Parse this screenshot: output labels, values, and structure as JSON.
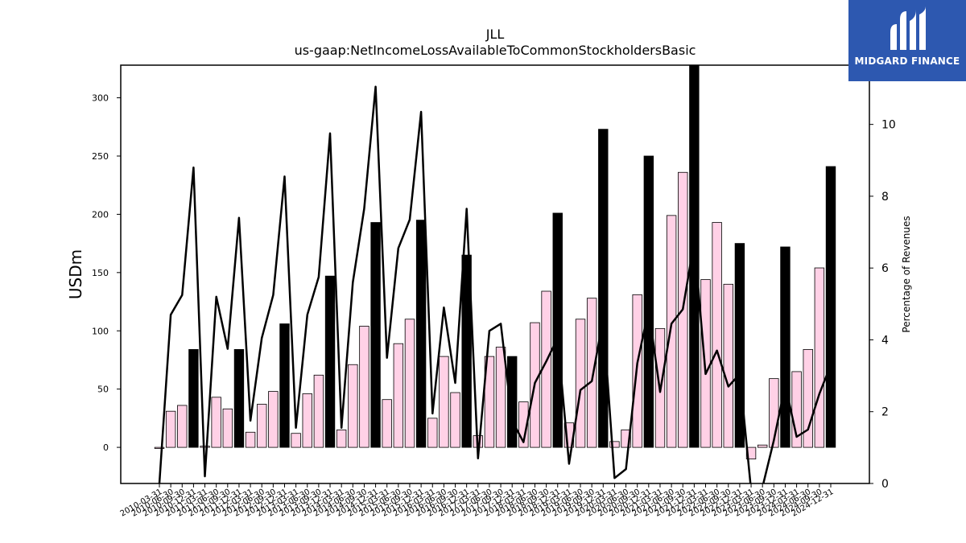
{
  "brand": {
    "name": "MIDGARD FINANCE",
    "logo_icon": "midgard-m-logo-icon",
    "background_color": "#2d58b0"
  },
  "chart_data": {
    "type": "bar",
    "title": "JLL",
    "subtitle": "us-gaap:NetIncomeLossAvailableToCommonStockholdersBasic",
    "ylabel": "USDm",
    "y2label": "Percentage of Revenues",
    "ylim": [
      -31,
      328
    ],
    "y2lim": [
      0,
      11.65
    ],
    "yticks": [
      0,
      50,
      100,
      150,
      200,
      250,
      300
    ],
    "y2ticks": [
      0,
      2,
      4,
      6,
      8,
      10
    ],
    "legend": "none",
    "grid": false,
    "colors": {
      "quarter_bar": "#ffd1e6",
      "annual_bar": "#000000",
      "line": "#000000"
    },
    "categories": [
      "2010-03-31",
      "2010-06-30",
      "2010-09-30",
      "2010-12-31",
      "2011-03-31",
      "2011-06-30",
      "2011-09-30",
      "2011-12-31",
      "2012-03-31",
      "2012-06-30",
      "2012-09-30",
      "2012-12-31",
      "2013-03-31",
      "2013-06-30",
      "2013-09-30",
      "2013-12-31",
      "2014-03-31",
      "2014-06-30",
      "2014-09-30",
      "2014-12-31",
      "2015-03-31",
      "2015-06-30",
      "2015-09-30",
      "2015-12-31",
      "2016-03-31",
      "2016-06-30",
      "2016-09-30",
      "2016-12-31",
      "2017-03-31",
      "2017-06-30",
      "2017-09-30",
      "2017-12-31",
      "2018-03-31",
      "2018-06-30",
      "2018-09-30",
      "2018-12-31",
      "2019-03-31",
      "2019-06-30",
      "2019-09-30",
      "2019-12-31",
      "2020-03-31",
      "2020-06-30",
      "2020-09-30",
      "2020-12-31",
      "2021-03-31",
      "2021-06-30",
      "2021-09-30",
      "2021-12-31",
      "2022-03-31",
      "2022-06-30",
      "2022-09-30",
      "2022-12-31",
      "2023-03-31",
      "2023-06-30",
      "2023-09-30",
      "2023-12-31",
      "2024-03-31",
      "2024-06-30",
      "2024-09-30",
      "2024-12-31"
    ],
    "series": [
      {
        "values": [
          -1,
          31,
          36,
          84,
          1,
          43,
          33,
          84,
          13,
          37,
          48,
          106,
          12,
          46,
          62,
          147,
          15,
          71,
          104,
          193,
          41,
          89,
          110,
          195,
          25,
          78,
          47,
          165,
          10,
          78,
          86,
          78,
          39,
          107,
          134,
          201,
          21,
          110,
          128,
          273,
          5,
          15,
          131,
          250,
          102,
          199,
          236,
          328,
          144,
          193,
          140,
          175,
          -10,
          2,
          59,
          172,
          65,
          84,
          154,
          241
        ],
        "is_annual": [
          false,
          false,
          false,
          true,
          false,
          false,
          false,
          true,
          false,
          false,
          false,
          true,
          false,
          false,
          false,
          true,
          false,
          false,
          false,
          true,
          false,
          false,
          false,
          true,
          false,
          false,
          false,
          true,
          false,
          false,
          false,
          true,
          false,
          false,
          false,
          true,
          false,
          false,
          false,
          true,
          false,
          false,
          false,
          true,
          false,
          false,
          false,
          true,
          false,
          false,
          false,
          true,
          false,
          false,
          false,
          true,
          false,
          false,
          false,
          true
        ]
      },
      {
        "axis": "right",
        "values": [
          0,
          4.7,
          5.25,
          8.8,
          0.2,
          5.2,
          3.75,
          7.4,
          1.75,
          4.05,
          5.25,
          8.55,
          1.55,
          4.7,
          5.75,
          9.75,
          1.55,
          5.6,
          7.65,
          11.05,
          3.5,
          6.55,
          7.35,
          10.35,
          1.95,
          4.9,
          2.8,
          7.65,
          0.7,
          4.25,
          4.45,
          1.75,
          1.15,
          2.8,
          3.4,
          4.05,
          0.55,
          2.6,
          2.85,
          4.6,
          0.15,
          0.4,
          3.35,
          4.85,
          2.55,
          4.45,
          4.85,
          6.75,
          3.05,
          3.7,
          2.7,
          3.05,
          -0.2,
          -0.1,
          1.2,
          2.75,
          1.3,
          1.5,
          2.5,
          3.3
        ]
      }
    ]
  }
}
